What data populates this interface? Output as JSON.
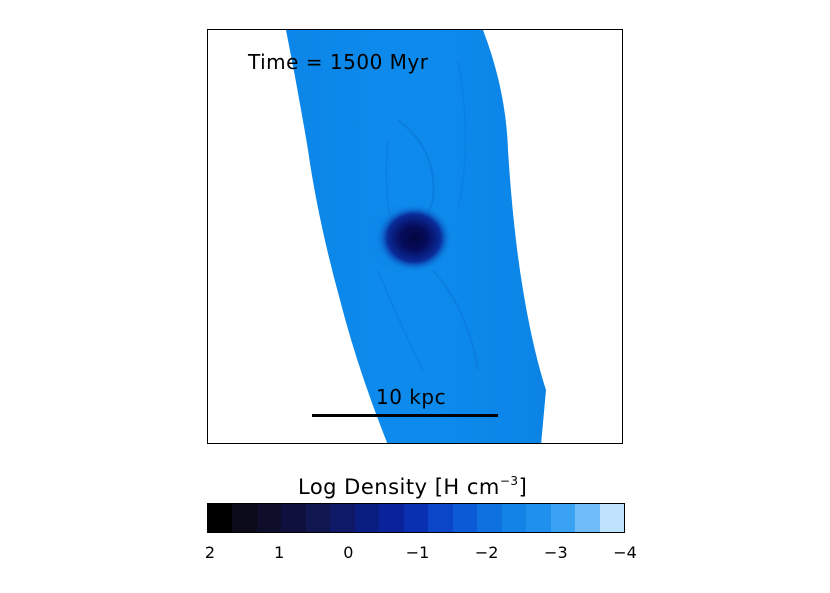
{
  "panel": {
    "time_label": "Time = 1500 Myr",
    "scale_bar_label": "10 kpc"
  },
  "colorbar": {
    "title_main": "Log Density ",
    "title_unit": "[H cm",
    "title_exp": "−3",
    "title_close": "]",
    "tick_labels": [
      "2",
      "1",
      "0",
      "−1",
      "−2",
      "−3",
      "−4"
    ],
    "colors": [
      "#000000",
      "#0a0a18",
      "#0e0e2a",
      "#10103e",
      "#101650",
      "#0e1a68",
      "#0a1e82",
      "#0a229a",
      "#0830b0",
      "#0b46c8",
      "#0d5ad6",
      "#0f70e0",
      "#1383e8",
      "#1f90ee",
      "#3aa2f3",
      "#6fbcf8",
      "#bfe2fd"
    ]
  },
  "colors": {
    "gas_stream": "#0d8bec",
    "stream_edge": "#0a7fe2",
    "core": "#060c5c"
  }
}
